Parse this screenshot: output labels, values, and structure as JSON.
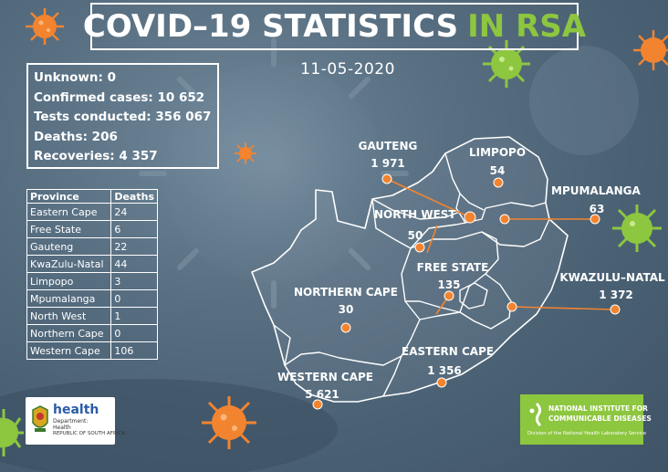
{
  "colors": {
    "accent_green": "#8dc63f",
    "marker_orange": "#f2842f",
    "text": "#ffffff",
    "background": "#5a7184"
  },
  "title": {
    "main": "COVID–19 STATISTICS",
    "highlight": "IN RSA"
  },
  "date": "11-05-2020",
  "stats": [
    "Unknown: 0",
    "Confirmed cases: 10 652",
    "Tests conducted: 356 067",
    "Deaths: 206",
    "Recoveries: 4 357"
  ],
  "province_table": {
    "headers": [
      "Province",
      "Deaths"
    ],
    "rows": [
      [
        "Eastern Cape",
        "24"
      ],
      [
        "Free State",
        "6"
      ],
      [
        "Gauteng",
        "22"
      ],
      [
        "KwaZulu-Natal",
        "44"
      ],
      [
        "Limpopo",
        "3"
      ],
      [
        "Mpumalanga",
        "0"
      ],
      [
        "North West",
        "1"
      ],
      [
        "Northern Cape",
        "0"
      ],
      [
        "Western Cape",
        "106"
      ]
    ]
  },
  "map_provinces": {
    "gauteng": {
      "name": "GAUTENG",
      "value": "1 971"
    },
    "limpopo": {
      "name": "LIMPOPO",
      "value": "54"
    },
    "mpumalanga": {
      "name": "MPUMALANGA",
      "value": "63"
    },
    "north_west": {
      "name": "NORTH WEST",
      "value": "50"
    },
    "free_state": {
      "name": "FREE STATE",
      "value": "135"
    },
    "kwazulu_natal": {
      "name": "KWAZULU–NATAL",
      "value": "1 372"
    },
    "northern_cape": {
      "name": "NORTHERN CAPE",
      "value": "30"
    },
    "eastern_cape": {
      "name": "EASTERN CAPE",
      "value": "1 356"
    },
    "western_cape": {
      "name": "WESTERN CAPE",
      "value": "5 621"
    }
  },
  "logos": {
    "health": {
      "word": "health",
      "line1": "Department:",
      "line2": "Health",
      "line3": "REPUBLIC OF SOUTH AFRICA"
    },
    "nicd": {
      "line1": "NATIONAL INSTITUTE FOR",
      "line2": "COMMUNICABLE DISEASES",
      "line3": "Division of the National Health Laboratory Service"
    }
  },
  "icons": [
    "virus-icon",
    "coat-of-arms-icon",
    "nicd-emblem-icon"
  ]
}
